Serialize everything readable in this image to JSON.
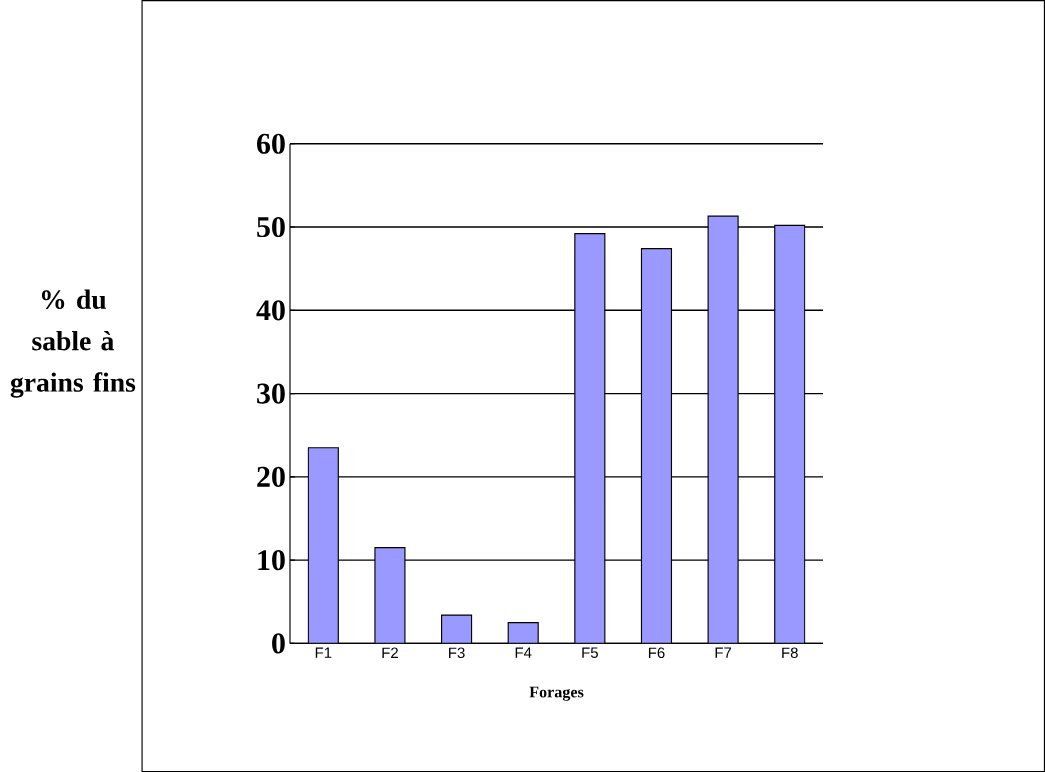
{
  "chart_data": {
    "type": "bar",
    "xlabel": "Forages",
    "ylabel": "% du sable à grains fins",
    "categories": [
      "F1",
      "F2",
      "F3",
      "F4",
      "F5",
      "F6",
      "F7",
      "F8"
    ],
    "values": [
      23.5,
      11.5,
      3.4,
      2.5,
      49.2,
      47.4,
      51.3,
      50.2
    ],
    "color": "#9999ff",
    "ylim": [
      0,
      60
    ],
    "yticks": [
      0,
      10,
      20,
      30,
      40,
      50,
      60
    ],
    "grid": "y"
  }
}
